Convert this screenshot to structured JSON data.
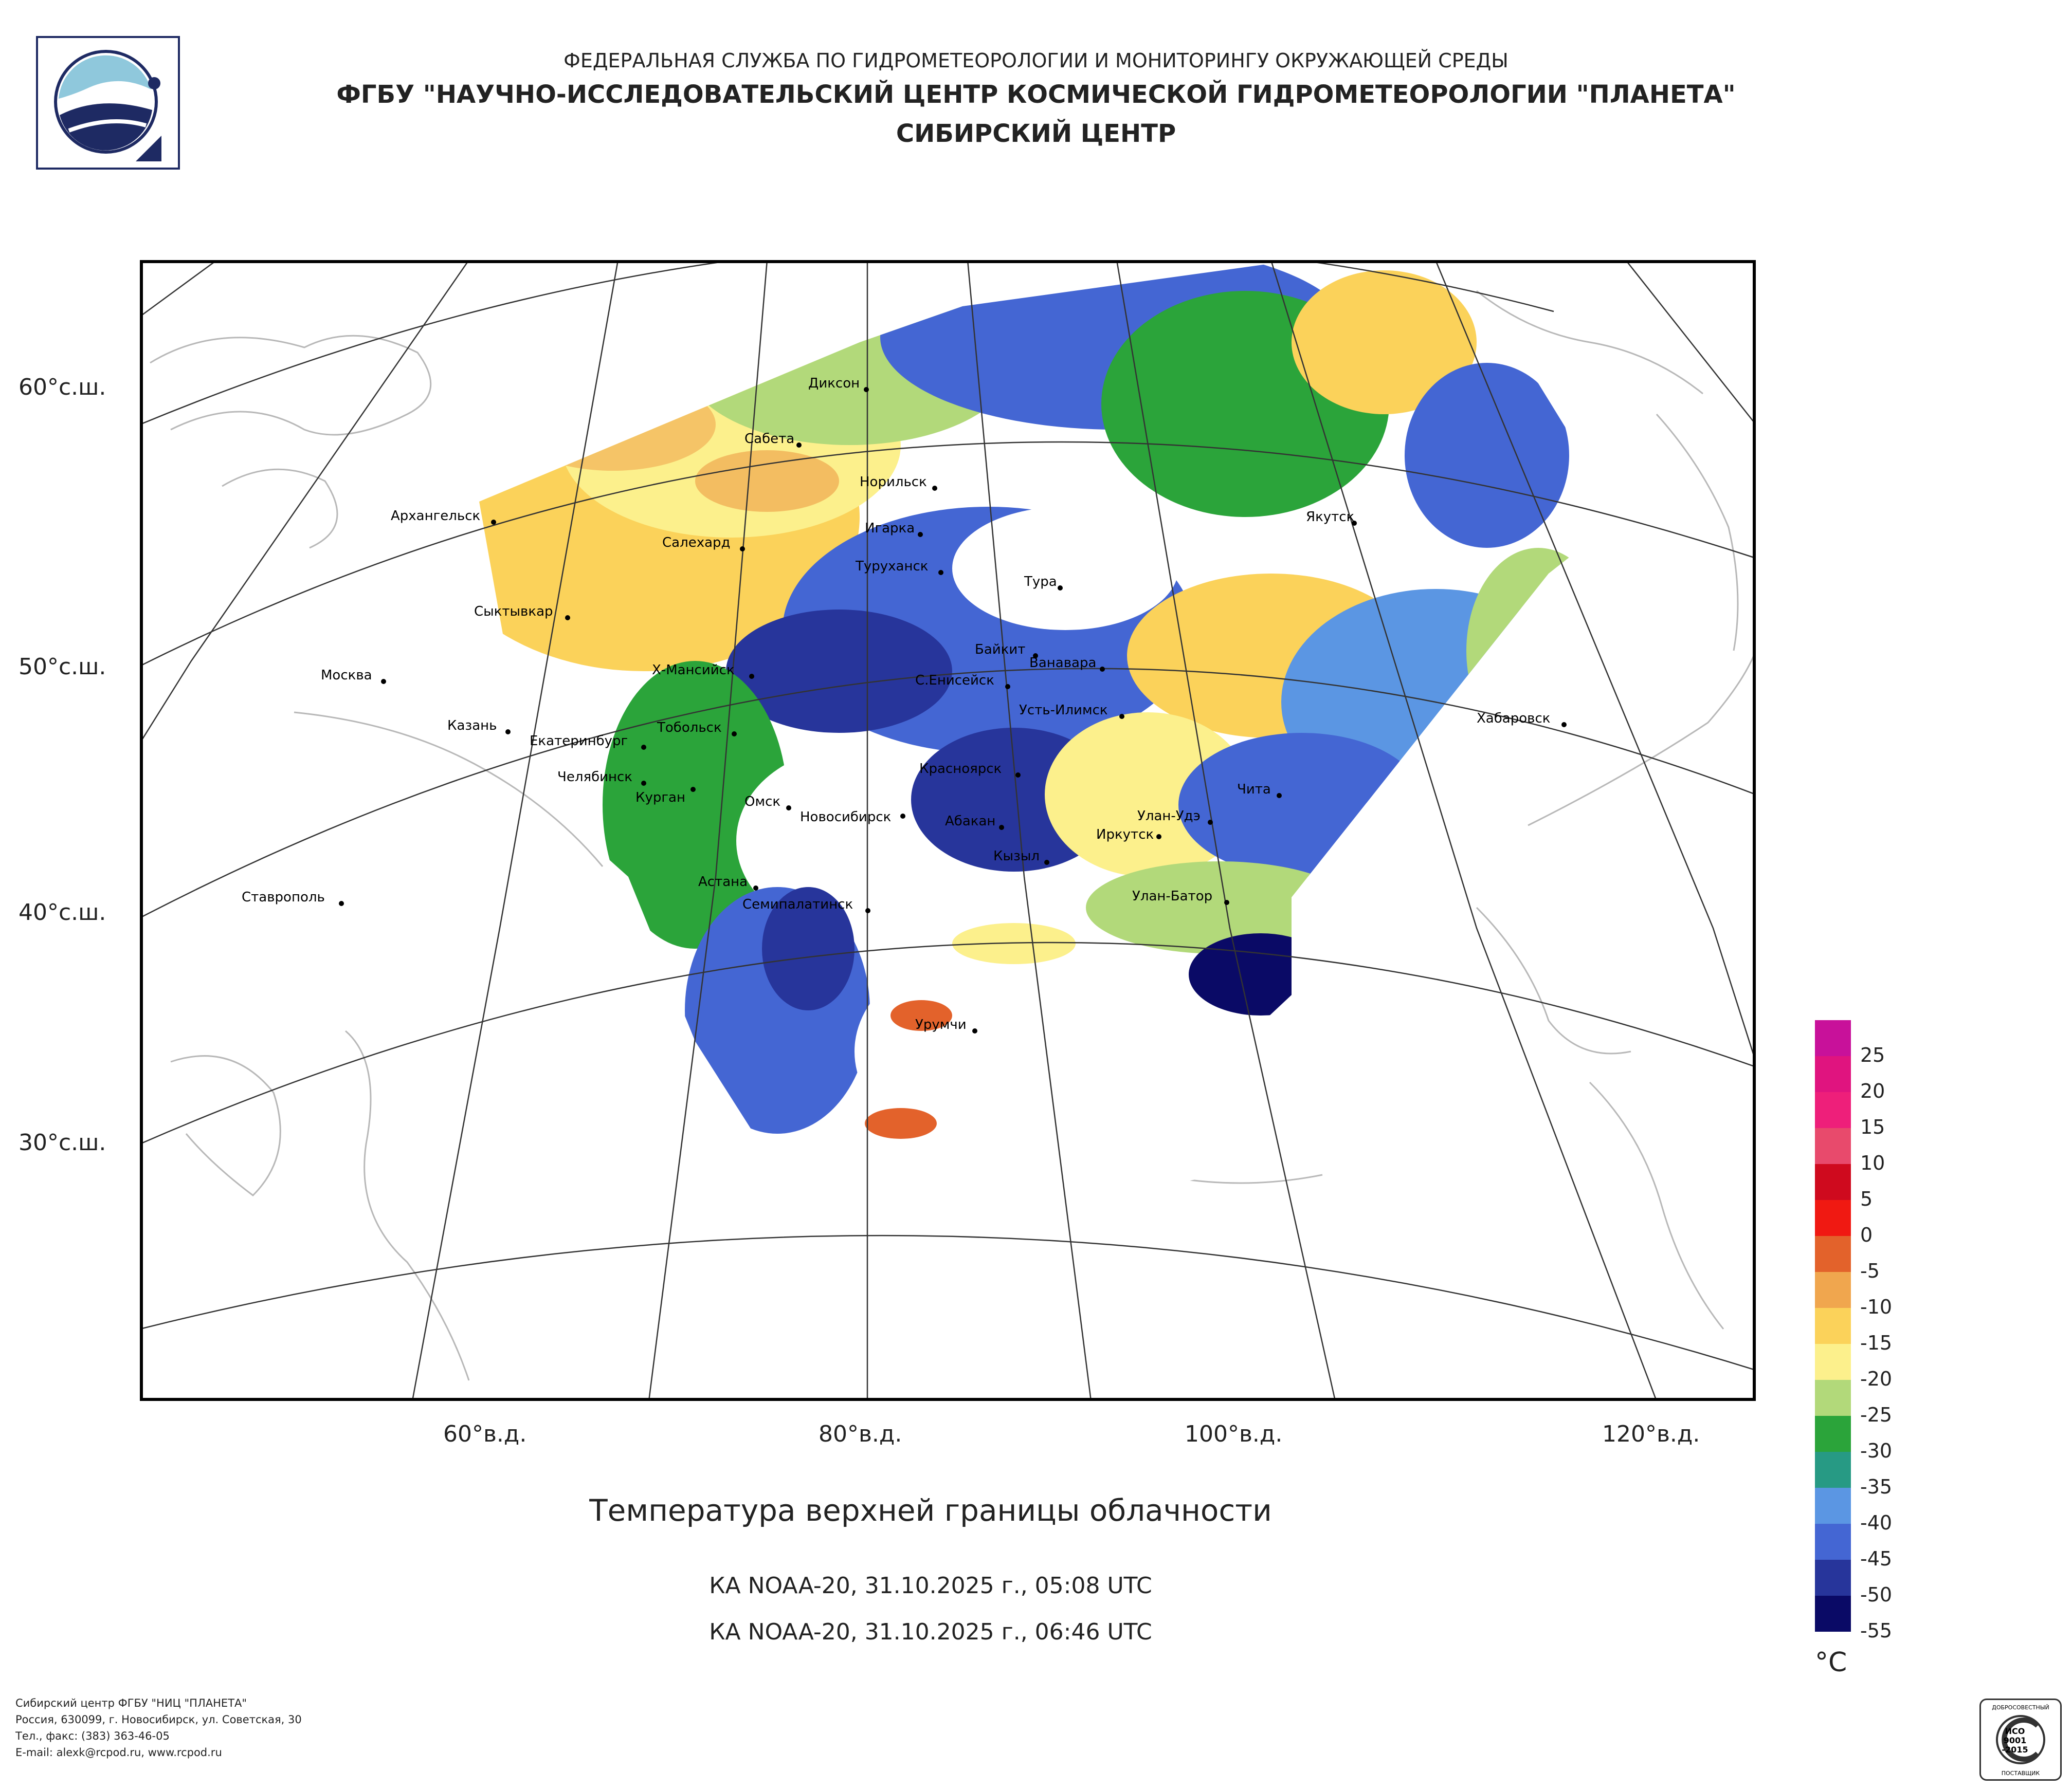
{
  "header": {
    "line1": "ФЕДЕРАЛЬНАЯ СЛУЖБА ПО ГИДРОМЕТЕОРОЛОГИИ И МОНИТОРИНГУ ОКРУЖАЮЩЕЙ СРЕДЫ",
    "line2": "ФГБУ \"НАУЧНО-ИССЛЕДОВАТЕЛЬСКИЙ ЦЕНТР КОСМИЧЕСКОЙ ГИДРОМЕТЕОРОЛОГИИ \"ПЛАНЕТА\"",
    "line3": "СИБИРСКИЙ ЦЕНТР"
  },
  "lat_labels": [
    "60°с.ш.",
    "50°с.ш.",
    "40°с.ш.",
    "30°с.ш."
  ],
  "lon_labels": [
    "60°в.д.",
    "80°в.д.",
    "100°в.д.",
    "120°в.д."
  ],
  "cities": [
    {
      "name": "Диксон"
    },
    {
      "name": "Сабета"
    },
    {
      "name": "Норильск"
    },
    {
      "name": "Игарка"
    },
    {
      "name": "Архангельск"
    },
    {
      "name": "Салехард"
    },
    {
      "name": "Туруханск"
    },
    {
      "name": "Тура"
    },
    {
      "name": "Якутск"
    },
    {
      "name": "Сыктывкар"
    },
    {
      "name": "Байкит"
    },
    {
      "name": "Ванавара"
    },
    {
      "name": "Москва"
    },
    {
      "name": "Х-Мансийск"
    },
    {
      "name": "С.Енисейск"
    },
    {
      "name": "Усть-Илимск"
    },
    {
      "name": "Хабаровск"
    },
    {
      "name": "Казань"
    },
    {
      "name": "Тобольск"
    },
    {
      "name": "Екатеринбург"
    },
    {
      "name": "Челябинск"
    },
    {
      "name": "Курган"
    },
    {
      "name": "Красноярск"
    },
    {
      "name": "Чита"
    },
    {
      "name": "Омск"
    },
    {
      "name": "Новосибирск"
    },
    {
      "name": "Абакан"
    },
    {
      "name": "Улан-Удэ"
    },
    {
      "name": "Иркутск"
    },
    {
      "name": "Кызыл"
    },
    {
      "name": "Астана"
    },
    {
      "name": "Ставрополь"
    },
    {
      "name": "Семипалатинск"
    },
    {
      "name": "Улан-Батор"
    },
    {
      "name": "Урумчи"
    }
  ],
  "title": "Температура верхней границы облачности",
  "pass1": "КА NOAA-20, 31.10.2025 г., 05:08 UTC",
  "pass2": "КА NOAA-20, 31.10.2025 г., 06:46 UTC",
  "legend": {
    "unit": "°C",
    "ticks": [
      "25",
      "20",
      "15",
      "10",
      "5",
      "0",
      "-5",
      "-10",
      "-15",
      "-20",
      "-25",
      "-30",
      "-35",
      "-40",
      "-45",
      "-50",
      "-55"
    ],
    "colors": [
      "#c8119a",
      "#e0147f",
      "#ee1f7a",
      "#e84a6c",
      "#cf0a1e",
      "#f01912",
      "#e3622b",
      "#f0a64e",
      "#fbd25a",
      "#fcf08c",
      "#b2d97a",
      "#2ba43a",
      "#279a84",
      "#5b96e3",
      "#4466d3",
      "#27359b",
      "#0a0a66"
    ]
  },
  "footer": {
    "line1": "Сибирский центр ФГБУ \"НИЦ \"ПЛАНЕТА\"",
    "line2": "Россия, 630099, г. Новосибирск, ул. Советская, 30",
    "line3": "Тел., факс: (383) 363-46-05",
    "line4": "E-mail: alexk@rcpod.ru, www.rcpod.ru"
  },
  "cert": {
    "top": "ДОБРОСОВЕСТНЫЙ",
    "iso1": "ИСО",
    "iso2": "9001",
    "iso3": "-2015",
    "bottom": "ПОСТАВЩИК"
  }
}
